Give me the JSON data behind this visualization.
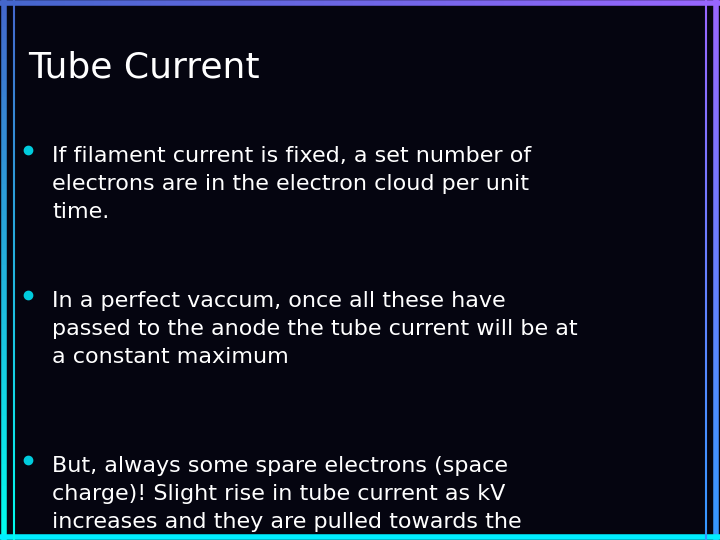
{
  "title": "Tube Current",
  "background_color": "#050510",
  "title_color": "#ffffff",
  "text_color": "#ffffff",
  "bullet_color": "#00ccdd",
  "title_fontsize": 26,
  "body_fontsize": 16,
  "bullet_points": [
    "If filament current is fixed, a set number of\nelectrons are in the electron cloud per unit\ntime.",
    "In a perfect vaccum, once all these have\npassed to the anode the tube current will be at\na constant maximum",
    "But, always some spare electrons (space\ncharge)! Slight rise in tube current as kV\nincreases and they are pulled towards the\ntarget"
  ],
  "font_family": "DejaVu Sans",
  "border_left_top_color": "#4466cc",
  "border_left_bottom_color": "#00ffee",
  "border_right_top_color": "#9966ff",
  "border_right_bottom_color": "#3399ff",
  "border_top_color": "#5566dd",
  "border_bottom_color": "#00eeff",
  "border_linewidth": 4
}
